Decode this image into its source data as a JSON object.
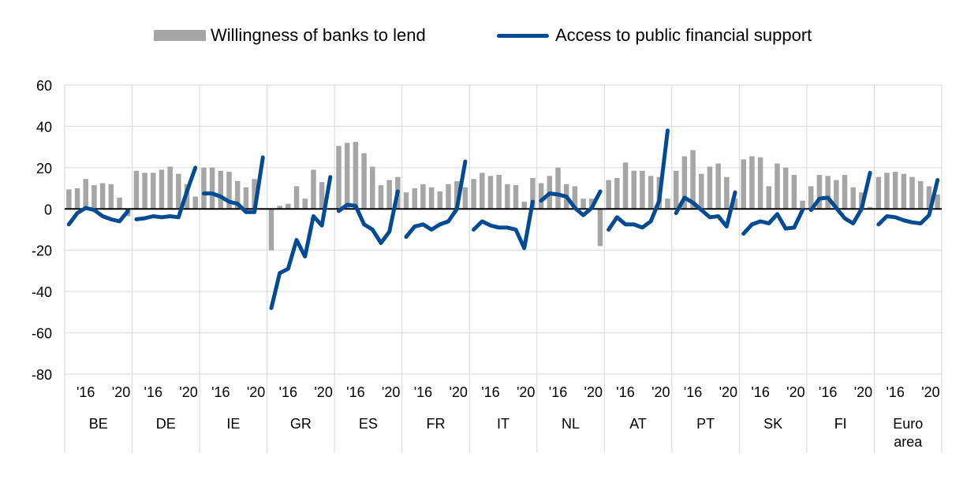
{
  "chart_data": {
    "type": "bar",
    "ylim": [
      -80,
      60
    ],
    "yticks": [
      -80,
      -60,
      -40,
      -20,
      0,
      20,
      40,
      60
    ],
    "grid": true,
    "legend_position": "top",
    "groups": [
      "BE",
      "DE",
      "IE",
      "GR",
      "ES",
      "FR",
      "IT",
      "NL",
      "AT",
      "PT",
      "SK",
      "FI",
      "Euro area"
    ],
    "year_ticks": [
      "'16",
      "'20"
    ],
    "x_years": [
      2014,
      2015,
      2016,
      2017,
      2018,
      2019,
      2020,
      2021
    ],
    "series": [
      {
        "name": "Willingness of banks to lend",
        "kind": "bar",
        "color": "#a6a6a6",
        "values": [
          [
            9.5,
            10,
            14.5,
            11.5,
            12.5,
            12,
            5.5,
            -3.5
          ],
          [
            18.5,
            17.5,
            17.5,
            19,
            20.5,
            17,
            12,
            6
          ],
          [
            20,
            20,
            18.5,
            18,
            13.5,
            10.5,
            14.5,
            0
          ],
          [
            -20,
            1.5,
            2.5,
            11,
            5,
            19,
            13,
            0
          ],
          [
            30.5,
            32,
            32.5,
            27,
            20.5,
            11.5,
            14,
            15.5
          ],
          [
            8,
            10,
            12,
            10.5,
            8.5,
            12,
            13.5,
            10.5
          ],
          [
            14.5,
            17.5,
            16,
            16.5,
            12,
            11.5,
            3.5,
            15
          ],
          [
            12.5,
            16,
            20,
            12,
            11,
            5,
            5,
            -18
          ],
          [
            14,
            15,
            22.5,
            18.5,
            18.5,
            16,
            15.5,
            5
          ],
          [
            18.5,
            25.5,
            28.5,
            17,
            20.5,
            22,
            15.5,
            5
          ],
          [
            24,
            25.5,
            25,
            11,
            22,
            20,
            16.5,
            4
          ],
          [
            11,
            16.5,
            16,
            14,
            16.5,
            10.5,
            8,
            1
          ],
          [
            15.5,
            17.5,
            18,
            17,
            15.5,
            13.5,
            11,
            7
          ]
        ]
      },
      {
        "name": "Access to public financial support",
        "kind": "line",
        "color": "#004b93",
        "values": [
          [
            -7.5,
            -2,
            0.5,
            -0.5,
            -3.5,
            -5,
            -6,
            -1
          ],
          [
            -5,
            -4.5,
            -3.5,
            -4,
            -3.5,
            -4,
            8.5,
            20
          ],
          [
            7.5,
            7.5,
            6,
            3.5,
            2.5,
            -1.5,
            -1.5,
            25
          ],
          [
            -48,
            -31,
            -29,
            -15,
            -23,
            -3.5,
            -8,
            15.5
          ],
          [
            -1,
            2,
            1.5,
            -7.5,
            -10,
            -16.5,
            -11,
            8.5
          ],
          [
            -13.5,
            -8.5,
            -7.5,
            -10,
            -7.5,
            -6,
            0,
            23
          ],
          [
            -10,
            -6,
            -8,
            -9,
            -9,
            -10,
            -19,
            3.5
          ],
          [
            4,
            7.5,
            7,
            6,
            0.5,
            -3,
            0.5,
            8.5
          ],
          [
            -10,
            -4,
            -7.5,
            -7.5,
            -9,
            -6,
            4,
            38
          ],
          [
            -2,
            5.5,
            3,
            -0.5,
            -4,
            -3.5,
            -8.5,
            8
          ],
          [
            -12,
            -7.5,
            -6,
            -7,
            -2.5,
            -9.5,
            -9,
            -0.5
          ],
          [
            -0.5,
            5,
            5.5,
            0.5,
            -4.5,
            -7,
            0,
            17.5
          ],
          [
            -7.5,
            -3.5,
            -4,
            -5.5,
            -6.5,
            -7,
            -3,
            14
          ]
        ]
      }
    ]
  }
}
